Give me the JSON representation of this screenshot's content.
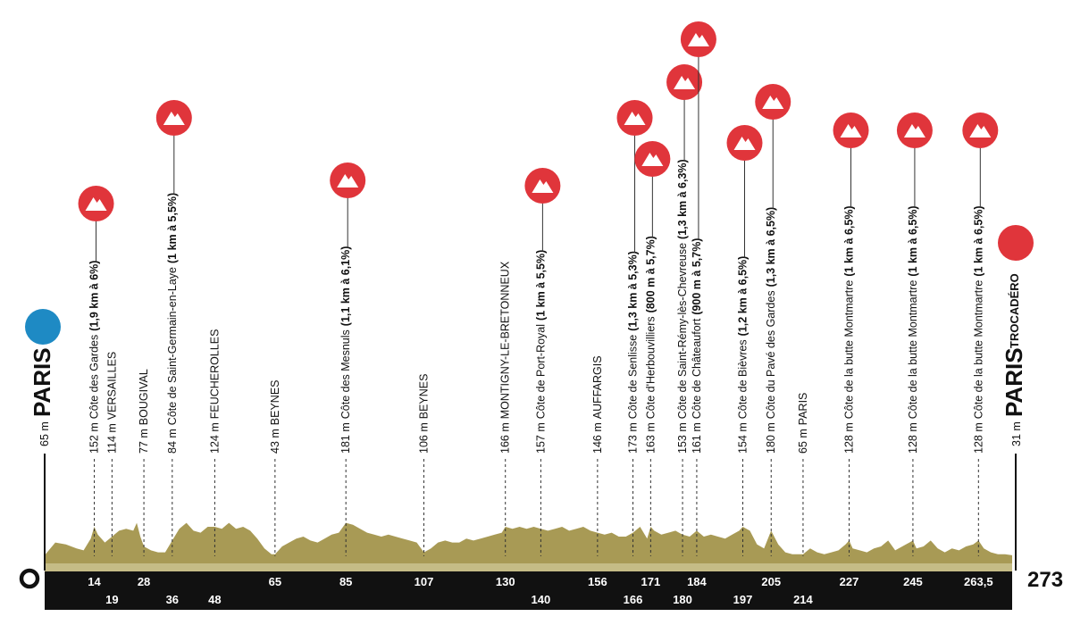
{
  "chart_data": {
    "type": "area",
    "title": "",
    "xlabel": "",
    "ylabel": "",
    "total_km": 273,
    "start_label": "0",
    "end_label": "273",
    "colors": {
      "profile": "#a89a55",
      "climb": "#e0353b",
      "start": "#1e8ac4",
      "finish": "#e0353b",
      "band": "#111111"
    },
    "profile": [
      [
        0,
        1
      ],
      [
        3,
        14
      ],
      [
        6,
        12
      ],
      [
        9,
        8
      ],
      [
        11,
        6
      ],
      [
        13,
        18
      ],
      [
        14,
        30
      ],
      [
        15,
        22
      ],
      [
        17,
        14
      ],
      [
        19,
        20
      ],
      [
        21,
        26
      ],
      [
        23,
        28
      ],
      [
        25,
        26
      ],
      [
        26,
        34
      ],
      [
        27,
        20
      ],
      [
        28,
        10
      ],
      [
        30,
        6
      ],
      [
        32,
        4
      ],
      [
        34,
        4
      ],
      [
        36,
        16
      ],
      [
        38,
        28
      ],
      [
        40,
        34
      ],
      [
        42,
        26
      ],
      [
        44,
        24
      ],
      [
        46,
        30
      ],
      [
        48,
        30
      ],
      [
        50,
        28
      ],
      [
        52,
        34
      ],
      [
        54,
        28
      ],
      [
        56,
        30
      ],
      [
        58,
        26
      ],
      [
        60,
        18
      ],
      [
        62,
        8
      ],
      [
        64,
        2
      ],
      [
        65,
        2
      ],
      [
        67,
        10
      ],
      [
        69,
        14
      ],
      [
        71,
        18
      ],
      [
        73,
        20
      ],
      [
        75,
        16
      ],
      [
        77,
        14
      ],
      [
        79,
        18
      ],
      [
        81,
        22
      ],
      [
        83,
        24
      ],
      [
        85,
        34
      ],
      [
        87,
        32
      ],
      [
        89,
        28
      ],
      [
        91,
        24
      ],
      [
        93,
        22
      ],
      [
        95,
        20
      ],
      [
        97,
        22
      ],
      [
        99,
        20
      ],
      [
        101,
        18
      ],
      [
        103,
        16
      ],
      [
        105,
        14
      ],
      [
        107,
        4
      ],
      [
        109,
        8
      ],
      [
        111,
        14
      ],
      [
        113,
        16
      ],
      [
        115,
        14
      ],
      [
        117,
        14
      ],
      [
        119,
        18
      ],
      [
        121,
        16
      ],
      [
        123,
        18
      ],
      [
        125,
        20
      ],
      [
        127,
        22
      ],
      [
        129,
        24
      ],
      [
        130,
        30
      ],
      [
        132,
        28
      ],
      [
        134,
        30
      ],
      [
        136,
        28
      ],
      [
        138,
        30
      ],
      [
        140,
        28
      ],
      [
        142,
        26
      ],
      [
        144,
        28
      ],
      [
        146,
        30
      ],
      [
        148,
        26
      ],
      [
        150,
        28
      ],
      [
        152,
        30
      ],
      [
        154,
        26
      ],
      [
        156,
        24
      ],
      [
        158,
        22
      ],
      [
        160,
        24
      ],
      [
        162,
        20
      ],
      [
        164,
        20
      ],
      [
        166,
        24
      ],
      [
        168,
        30
      ],
      [
        170,
        18
      ],
      [
        171,
        30
      ],
      [
        172,
        26
      ],
      [
        174,
        22
      ],
      [
        176,
        24
      ],
      [
        178,
        26
      ],
      [
        180,
        22
      ],
      [
        182,
        20
      ],
      [
        184,
        26
      ],
      [
        186,
        20
      ],
      [
        188,
        22
      ],
      [
        190,
        20
      ],
      [
        192,
        18
      ],
      [
        194,
        22
      ],
      [
        196,
        26
      ],
      [
        197,
        30
      ],
      [
        199,
        26
      ],
      [
        201,
        12
      ],
      [
        203,
        8
      ],
      [
        205,
        26
      ],
      [
        207,
        12
      ],
      [
        209,
        4
      ],
      [
        211,
        2
      ],
      [
        213,
        2
      ],
      [
        214,
        2
      ],
      [
        216,
        8
      ],
      [
        218,
        4
      ],
      [
        220,
        2
      ],
      [
        222,
        4
      ],
      [
        224,
        6
      ],
      [
        226,
        12
      ],
      [
        227,
        16
      ],
      [
        228,
        8
      ],
      [
        230,
        6
      ],
      [
        232,
        4
      ],
      [
        234,
        8
      ],
      [
        236,
        10
      ],
      [
        238,
        16
      ],
      [
        240,
        6
      ],
      [
        242,
        10
      ],
      [
        244,
        14
      ],
      [
        245,
        16
      ],
      [
        246,
        8
      ],
      [
        248,
        10
      ],
      [
        250,
        16
      ],
      [
        252,
        8
      ],
      [
        254,
        4
      ],
      [
        256,
        8
      ],
      [
        258,
        6
      ],
      [
        260,
        10
      ],
      [
        262,
        12
      ],
      [
        263.5,
        16
      ],
      [
        265,
        8
      ],
      [
        267,
        4
      ],
      [
        269,
        2
      ],
      [
        271,
        2
      ],
      [
        273,
        1
      ]
    ],
    "ticks_top": [
      {
        "km": 14,
        "label": "14"
      },
      {
        "km": 28,
        "label": "28"
      },
      {
        "km": 65,
        "label": "65"
      },
      {
        "km": 85,
        "label": "85"
      },
      {
        "km": 107,
        "label": "107"
      },
      {
        "km": 130,
        "label": "130"
      },
      {
        "km": 156,
        "label": "156"
      },
      {
        "km": 171,
        "label": "171"
      },
      {
        "km": 184,
        "label": "184"
      },
      {
        "km": 205,
        "label": "205"
      },
      {
        "km": 227,
        "label": "227"
      },
      {
        "km": 245,
        "label": "245"
      },
      {
        "km": 263.5,
        "label": "263,5"
      }
    ],
    "ticks_bottom": [
      {
        "km": 19,
        "label": "19"
      },
      {
        "km": 36,
        "label": "36"
      },
      {
        "km": 48,
        "label": "48"
      },
      {
        "km": 140,
        "label": "140"
      },
      {
        "km": 166,
        "label": "166"
      },
      {
        "km": 180,
        "label": "180"
      },
      {
        "km": 197,
        "label": "197"
      },
      {
        "km": 214,
        "label": "214"
      }
    ],
    "waypoints": [
      {
        "km": 14,
        "alt": "152 m",
        "name": "Côte des Gardes",
        "detail": "(1,9 km à 6%)",
        "climb": true
      },
      {
        "km": 19,
        "alt": "114 m",
        "name": "VERSAILLES",
        "detail": "",
        "climb": false
      },
      {
        "km": 28,
        "alt": "77 m",
        "name": "BOUGIVAL",
        "detail": "",
        "climb": false
      },
      {
        "km": 36,
        "alt": "84 m",
        "name": "Côte de Saint-Germain-en-Laye",
        "detail": "(1 km à 5,5%)",
        "climb": true
      },
      {
        "km": 48,
        "alt": "124 m",
        "name": "FEUCHEROLLES",
        "detail": "",
        "climb": false
      },
      {
        "km": 65,
        "alt": "43 m",
        "name": "BEYNES",
        "detail": "",
        "climb": false
      },
      {
        "km": 85,
        "alt": "181 m",
        "name": "Côte des Mesnuls",
        "detail": "(1,1 km à 6,1%)",
        "climb": true
      },
      {
        "km": 107,
        "alt": "106 m",
        "name": "BEYNES",
        "detail": "",
        "climb": false
      },
      {
        "km": 130,
        "alt": "166 m",
        "name": "MONTIGNY-LE-BRETONNEUX",
        "detail": "",
        "climb": false
      },
      {
        "km": 140,
        "alt": "157 m",
        "name": "Côte de Port-Royal",
        "detail": "(1 km à 5,5%)",
        "climb": true
      },
      {
        "km": 156,
        "alt": "146 m",
        "name": "AUFFARGIS",
        "detail": "",
        "climb": false
      },
      {
        "km": 166,
        "alt": "173 m",
        "name": "Côte de Senlisse",
        "detail": "(1,3 km à 5,3%)",
        "climb": true
      },
      {
        "km": 171,
        "alt": "163 m",
        "name": "Côte d'Herbouvilliers",
        "detail": "(800 m à 5,7%)",
        "climb": true
      },
      {
        "km": 180,
        "alt": "153 m",
        "name": "Côte de Saint-Rémy-lès-Chevreuse",
        "detail": "(1,3 km à 6,3%)",
        "climb": true
      },
      {
        "km": 184,
        "alt": "161 m",
        "name": "Côte de Châteaufort",
        "detail": "(900 m à 5,7%)",
        "climb": true
      },
      {
        "km": 197,
        "alt": "154 m",
        "name": "Côte de Bièvres",
        "detail": "(1,2 km à 6,5%)",
        "climb": true
      },
      {
        "km": 205,
        "alt": "180 m",
        "name": "Côte du Pavé des Gardes",
        "detail": "(1,3 km à 6,5%)",
        "climb": true
      },
      {
        "km": 214,
        "alt": "65 m",
        "name": "PARIS",
        "detail": "",
        "climb": false
      },
      {
        "km": 227,
        "alt": "128 m",
        "name": "Côte de la butte Montmartre",
        "detail": "(1 km à 6,5%)",
        "climb": true
      },
      {
        "km": 245,
        "alt": "128 m",
        "name": "Côte de la butte Montmartre",
        "detail": "(1 km à 6,5%)",
        "climb": true
      },
      {
        "km": 263.5,
        "alt": "128 m",
        "name": "Côte de la butte Montmartre",
        "detail": "(1 km à 6,5%)",
        "climb": true
      }
    ],
    "start": {
      "alt": "65 m",
      "city": "PARIS"
    },
    "finish": {
      "alt": "31 m",
      "city": "PARIS",
      "sub": "TROCADÉRO"
    }
  }
}
